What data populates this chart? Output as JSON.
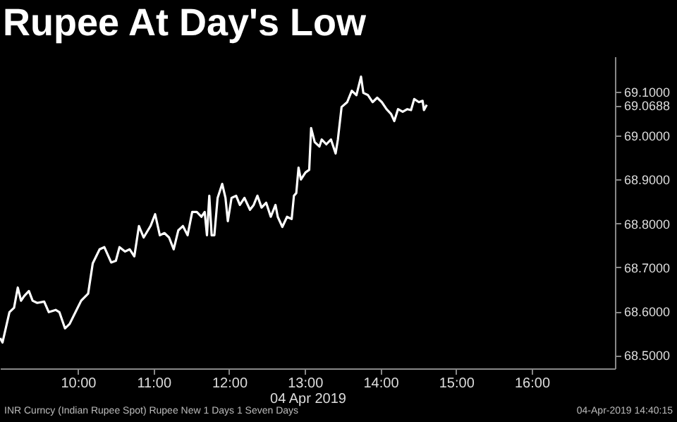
{
  "chart_data": {
    "type": "line",
    "title": "Rupee At Day's Low",
    "xlabel": "04 Apr 2019",
    "x": [
      8.972,
      9.003,
      9.095,
      9.156,
      9.205,
      9.248,
      9.291,
      9.352,
      9.401,
      9.462,
      9.554,
      9.615,
      9.706,
      9.755,
      9.829,
      9.89,
      9.982,
      10.043,
      10.135,
      10.196,
      10.287,
      10.349,
      10.44,
      10.502,
      10.55,
      10.624,
      10.685,
      10.746,
      10.807,
      10.869,
      10.96,
      11.021,
      11.083,
      11.144,
      11.205,
      11.266,
      11.327,
      11.388,
      11.45,
      11.511,
      11.572,
      11.633,
      11.676,
      11.706,
      11.737,
      11.768,
      11.804,
      11.847,
      11.908,
      11.951,
      11.982,
      12.031,
      12.092,
      12.141,
      12.202,
      12.275,
      12.324,
      12.373,
      12.428,
      12.489,
      12.55,
      12.612,
      12.642,
      12.703,
      12.765,
      12.826,
      12.856,
      12.887,
      12.917,
      12.948,
      13.009,
      13.058,
      13.083,
      13.131,
      13.193,
      13.223,
      13.284,
      13.346,
      13.407,
      13.437,
      13.486,
      13.56,
      13.621,
      13.682,
      13.743,
      13.774,
      13.835,
      13.896,
      13.957,
      14.018,
      14.08,
      14.141,
      14.183,
      14.232,
      14.294,
      14.355,
      14.404,
      14.446,
      14.508,
      14.557,
      14.575,
      14.612
    ],
    "series": [
      {
        "color": "#ffffff",
        "values": [
          68.539,
          68.529,
          68.598,
          68.608,
          68.654,
          68.624,
          68.635,
          68.646,
          68.624,
          68.619,
          68.622,
          68.598,
          68.603,
          68.598,
          68.561,
          68.571,
          68.603,
          68.624,
          68.64,
          68.709,
          68.741,
          68.746,
          68.711,
          68.715,
          68.746,
          68.736,
          68.741,
          68.725,
          68.794,
          68.768,
          68.794,
          68.821,
          68.773,
          68.778,
          68.768,
          68.741,
          68.784,
          68.794,
          68.773,
          68.826,
          68.826,
          68.815,
          68.826,
          68.773,
          68.863,
          68.773,
          68.773,
          68.858,
          68.89,
          68.858,
          68.805,
          68.858,
          68.863,
          68.842,
          68.858,
          68.831,
          68.842,
          68.863,
          68.836,
          68.847,
          68.815,
          68.842,
          68.815,
          68.792,
          68.815,
          68.81,
          68.863,
          68.869,
          68.927,
          68.9,
          68.916,
          68.922,
          69.017,
          68.985,
          68.975,
          68.991,
          68.98,
          68.991,
          68.959,
          68.991,
          69.065,
          69.076,
          69.102,
          69.092,
          69.134,
          69.097,
          69.092,
          69.076,
          69.086,
          69.076,
          69.06,
          69.049,
          69.033,
          69.06,
          69.054,
          69.06,
          69.058,
          69.083,
          69.076,
          69.079,
          69.058,
          69.07
        ]
      }
    ],
    "xlim": [
      8.97,
      17.1
    ],
    "xticks": [
      {
        "value": 10,
        "label": "10:00"
      },
      {
        "value": 11,
        "label": "11:00"
      },
      {
        "value": 12,
        "label": "12:00"
      },
      {
        "value": 13,
        "label": "13:00"
      },
      {
        "value": 14,
        "label": "14:00"
      },
      {
        "value": 15,
        "label": "15:00"
      },
      {
        "value": 16,
        "label": "16:00"
      }
    ],
    "ylim": [
      68.47,
      69.18
    ],
    "yticks": [
      {
        "value": 68.5,
        "label": "68.5000"
      },
      {
        "value": 68.6,
        "label": "68.6000"
      },
      {
        "value": 68.7,
        "label": "68.7000"
      },
      {
        "value": 68.8,
        "label": "68.8000"
      },
      {
        "value": 68.9,
        "label": "68.9000"
      },
      {
        "value": 69.0,
        "label": "69.0000"
      },
      {
        "value": 69.0688,
        "label": "69.0688"
      },
      {
        "value": 69.1,
        "label": "69.1000"
      }
    ],
    "grid": false,
    "marker": "none",
    "line_style": "solid",
    "annotations": [
      "INR Curncy (Indian Rupee Spot) Rupee New 1 Days 1 Seven Days",
      "04-Apr-2019 14:40:15"
    ]
  }
}
